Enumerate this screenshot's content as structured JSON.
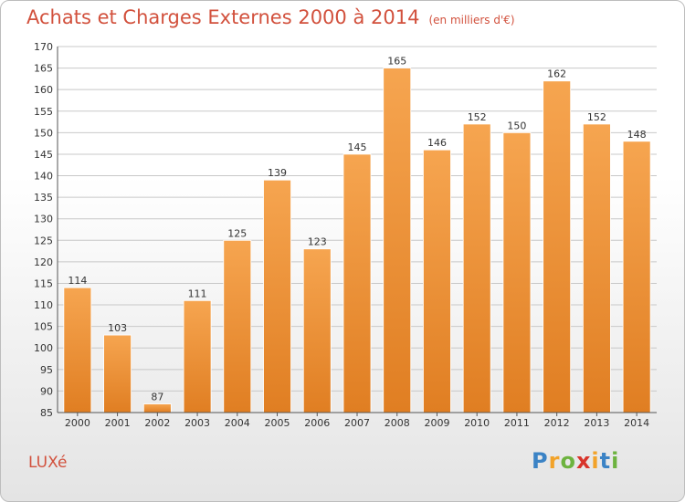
{
  "title": "Achats et Charges Externes 2000 à 2014",
  "unit": "(en milliers d'€)",
  "town": "LUXé",
  "logo": [
    "P",
    "r",
    "o",
    "x",
    "i",
    "t",
    "i"
  ],
  "colors": {
    "bar_top": "#f6a550",
    "bar_bottom": "#e07e22",
    "title": "#d2513d",
    "grid": "#c8c8c8"
  },
  "logo_colors": [
    "#3b83c5",
    "#f2a32a",
    "#6db33f",
    "#d8342b",
    "#f2a32a",
    "#3b83c5",
    "#6db33f"
  ],
  "chart_data": {
    "type": "bar",
    "title": "Achats et Charges Externes 2000 à 2014",
    "categories": [
      "2000",
      "2001",
      "2002",
      "2003",
      "2004",
      "2005",
      "2006",
      "2007",
      "2008",
      "2009",
      "2010",
      "2011",
      "2012",
      "2013",
      "2014"
    ],
    "values": [
      114,
      103,
      87,
      111,
      125,
      139,
      123,
      145,
      165,
      146,
      152,
      150,
      162,
      152,
      148
    ],
    "ylim": [
      85,
      170
    ],
    "yticks": [
      85,
      90,
      95,
      100,
      105,
      110,
      115,
      120,
      125,
      130,
      135,
      140,
      145,
      150,
      155,
      160,
      165,
      170
    ],
    "grid": true,
    "xlabel": "",
    "ylabel": ""
  }
}
